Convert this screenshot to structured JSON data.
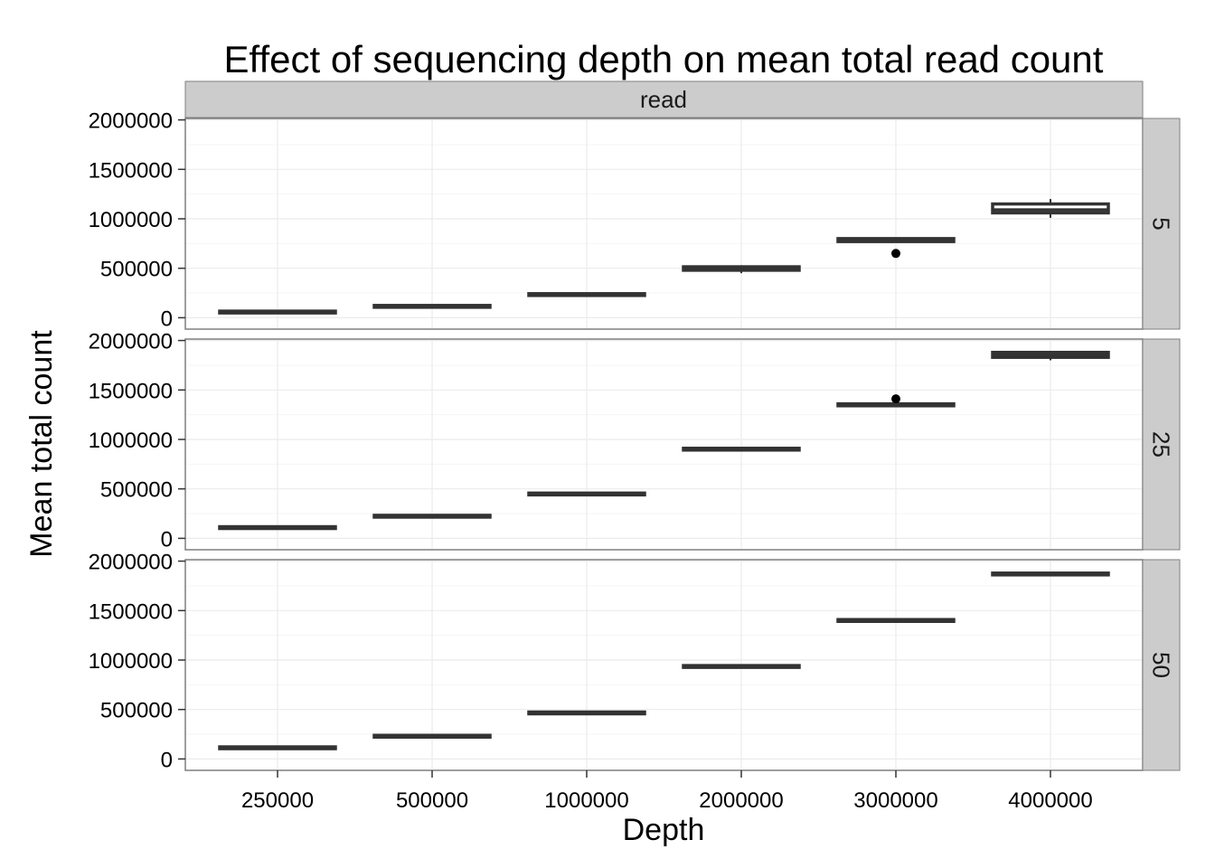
{
  "chart_data": {
    "type": "boxplot",
    "title": "Effect of sequencing depth on mean total read count",
    "xlabel": "Depth",
    "ylabel": "Mean total count",
    "column_strip": "read",
    "categories": [
      "250000",
      "500000",
      "1000000",
      "2000000",
      "3000000",
      "4000000"
    ],
    "ylim": [
      0,
      2000000
    ],
    "yticks": [
      0,
      500000,
      1000000,
      1500000,
      2000000
    ],
    "ytick_labels": [
      "0",
      "500000",
      "1000000",
      "1500000",
      "2000000"
    ],
    "grid": true,
    "facets": [
      {
        "strip": "5",
        "boxes": [
          {
            "q1": 55000,
            "median": 57000,
            "q3": 60000,
            "lo": 55000,
            "hi": 60000,
            "outliers": []
          },
          {
            "q1": 112000,
            "median": 115000,
            "q3": 118000,
            "lo": 112000,
            "hi": 118000,
            "outliers": []
          },
          {
            "q1": 230000,
            "median": 233000,
            "q3": 238000,
            "lo": 228000,
            "hi": 240000,
            "outliers": []
          },
          {
            "q1": 480000,
            "median": 500000,
            "q3": 515000,
            "lo": 450000,
            "hi": 530000,
            "outliers": []
          },
          {
            "q1": 770000,
            "median": 785000,
            "q3": 800000,
            "lo": 760000,
            "hi": 805000,
            "outliers": [
              650000
            ]
          },
          {
            "q1": 1060000,
            "median": 1090000,
            "q3": 1150000,
            "lo": 1010000,
            "hi": 1200000,
            "outliers": []
          }
        ]
      },
      {
        "strip": "25",
        "boxes": [
          {
            "q1": 105000,
            "median": 108000,
            "q3": 112000,
            "lo": 105000,
            "hi": 112000,
            "outliers": []
          },
          {
            "q1": 220000,
            "median": 223000,
            "q3": 227000,
            "lo": 220000,
            "hi": 227000,
            "outliers": []
          },
          {
            "q1": 445000,
            "median": 448000,
            "q3": 452000,
            "lo": 443000,
            "hi": 453000,
            "outliers": []
          },
          {
            "q1": 895000,
            "median": 900000,
            "q3": 908000,
            "lo": 893000,
            "hi": 910000,
            "outliers": []
          },
          {
            "q1": 1340000,
            "median": 1350000,
            "q3": 1360000,
            "lo": 1338000,
            "hi": 1390000,
            "outliers": [
              1410000
            ]
          },
          {
            "q1": 1830000,
            "median": 1850000,
            "q3": 1880000,
            "lo": 1800000,
            "hi": 1890000,
            "outliers": []
          }
        ]
      },
      {
        "strip": "50",
        "boxes": [
          {
            "q1": 110000,
            "median": 113000,
            "q3": 116000,
            "lo": 110000,
            "hi": 116000,
            "outliers": []
          },
          {
            "q1": 227000,
            "median": 230000,
            "q3": 233000,
            "lo": 227000,
            "hi": 233000,
            "outliers": []
          },
          {
            "q1": 462000,
            "median": 465000,
            "q3": 469000,
            "lo": 462000,
            "hi": 469000,
            "outliers": []
          },
          {
            "q1": 930000,
            "median": 935000,
            "q3": 940000,
            "lo": 930000,
            "hi": 940000,
            "outliers": []
          },
          {
            "q1": 1395000,
            "median": 1400000,
            "q3": 1405000,
            "lo": 1395000,
            "hi": 1405000,
            "outliers": []
          },
          {
            "q1": 1865000,
            "median": 1870000,
            "q3": 1875000,
            "lo": 1865000,
            "hi": 1875000,
            "outliers": []
          }
        ]
      }
    ],
    "colors": {
      "box_stroke": "#333333",
      "box_fill": "#ffffff",
      "strip_fill": "#cccccc",
      "panel_border": "#7f7f7f",
      "grid_major": "#ebebeb",
      "grid_minor": "#f5f5f5",
      "outlier": "#000000"
    }
  }
}
